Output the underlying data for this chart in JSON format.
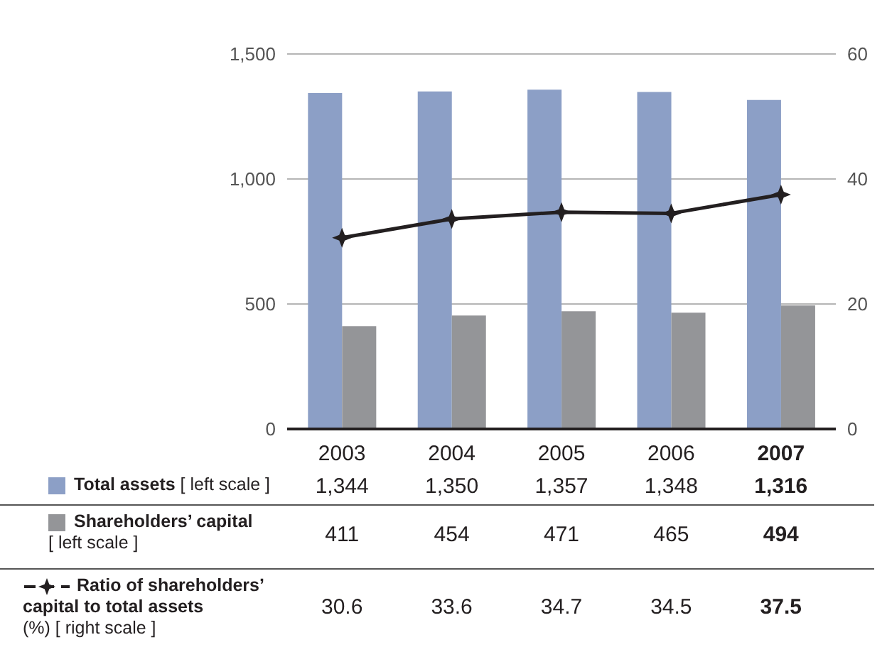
{
  "chart_data": {
    "type": "bar",
    "categories": [
      "2003",
      "2004",
      "2005",
      "2006",
      "2007"
    ],
    "series": [
      {
        "name": "Total assets [ left scale ]",
        "color": "#8c9fc6",
        "values": [
          1344,
          1350,
          1357,
          1348,
          1316
        ],
        "value_labels": [
          "1,344",
          "1,350",
          "1,357",
          "1,348",
          "1,316"
        ]
      },
      {
        "name": "Shareholders’ capital [ left scale ]",
        "color": "#949598",
        "values": [
          411,
          454,
          471,
          465,
          494
        ],
        "value_labels": [
          "411",
          "454",
          "471",
          "465",
          "494"
        ]
      },
      {
        "name": "Ratio of shareholders’ capital to total assets (%) [ right scale ]",
        "type": "line",
        "axis": "y2",
        "color": "#231f20",
        "values": [
          30.6,
          33.6,
          34.7,
          34.5,
          37.5
        ],
        "value_labels": [
          "30.6",
          "33.6",
          "34.7",
          "34.5",
          "37.5"
        ],
        "marker": "star",
        "line_style": "solid"
      }
    ],
    "ylim": [
      0,
      1500
    ],
    "yticks": [
      0,
      500,
      {
        "value": 1000,
        "label": "1,000"
      },
      {
        "value": 1500,
        "label": "1,500"
      }
    ],
    "y2lim": [
      0,
      60
    ],
    "y2ticks": [
      0,
      20,
      40,
      60
    ],
    "grid": "y",
    "legend": "bottom"
  }
}
